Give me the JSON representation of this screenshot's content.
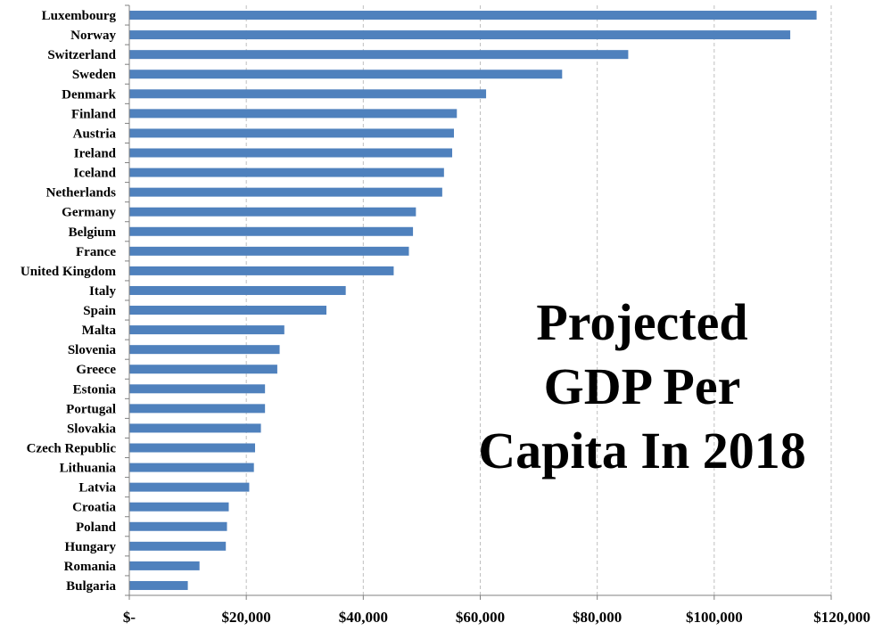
{
  "chart_data": {
    "type": "bar",
    "orientation": "horizontal",
    "title_lines": [
      "Projected",
      "GDP Per",
      "Capita In 2018"
    ],
    "categories": [
      "Luxembourg",
      "Norway",
      "Switzerland",
      "Sweden",
      "Denmark",
      "Finland",
      "Austria",
      "Ireland",
      "Iceland",
      "Netherlands",
      "Germany",
      "Belgium",
      "France",
      "United Kingdom",
      "Italy",
      "Spain",
      "Malta",
      "Slovenia",
      "Greece",
      "Estonia",
      "Portugal",
      "Slovakia",
      "Czech Republic",
      "Lithuania",
      "Latvia",
      "Croatia",
      "Poland",
      "Hungary",
      "Romania",
      "Bulgaria"
    ],
    "values": [
      117500,
      113000,
      85300,
      74000,
      61000,
      56000,
      55500,
      55200,
      53800,
      53500,
      49000,
      48500,
      47800,
      45200,
      37000,
      33700,
      26500,
      25700,
      25300,
      23200,
      23200,
      22500,
      21500,
      21300,
      20500,
      17000,
      16700,
      16500,
      12000,
      10000
    ],
    "xlim": [
      0,
      120000
    ],
    "xticks": [
      0,
      20000,
      40000,
      60000,
      80000,
      100000,
      120000
    ],
    "xtick_labels": [
      "$-",
      "$20,000",
      "$40,000",
      "$60,000",
      "$80,000",
      "$100,000",
      "$120,000"
    ],
    "grid": "vertical dashed",
    "bar_color": "#4f81bd"
  }
}
